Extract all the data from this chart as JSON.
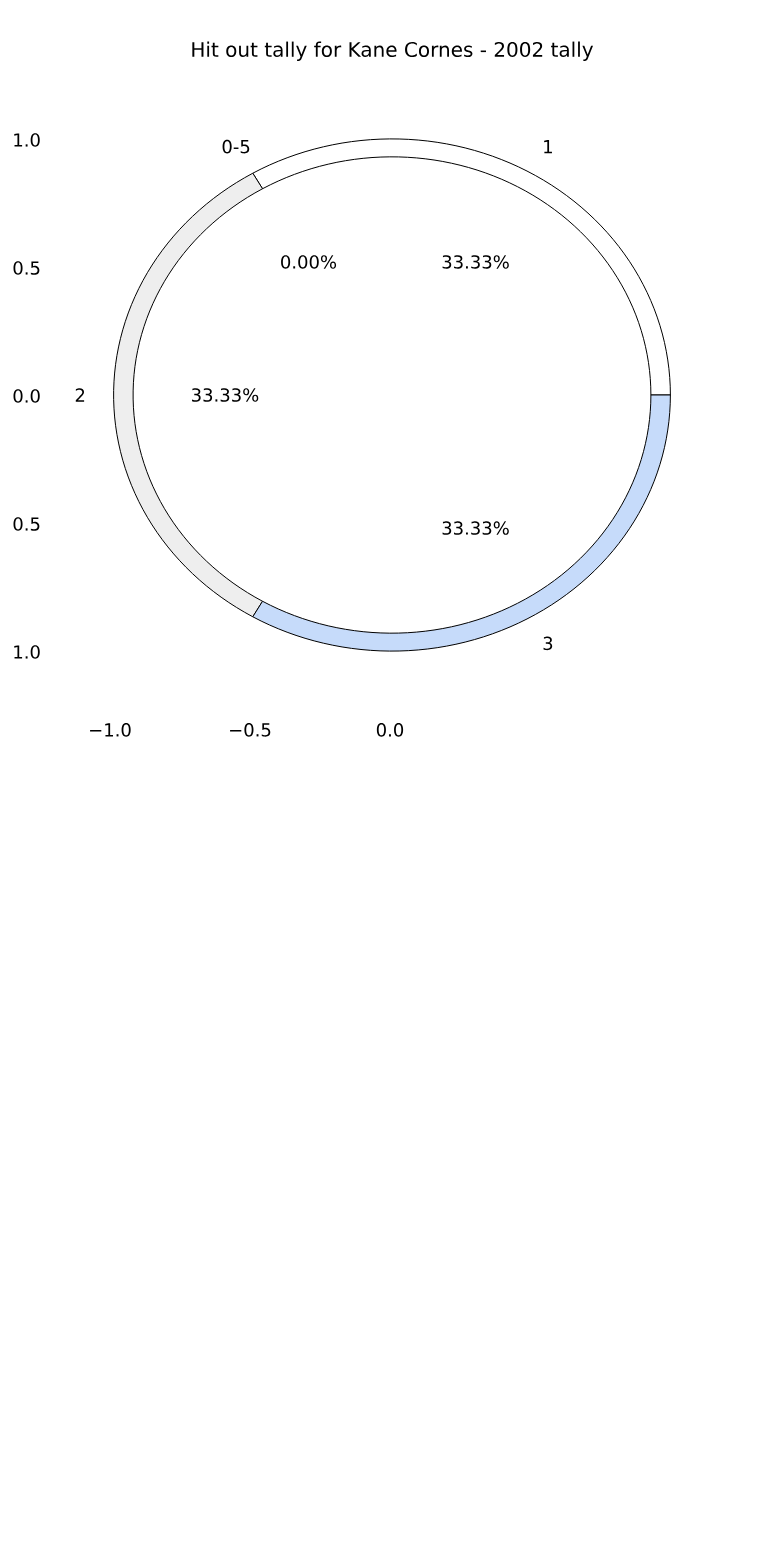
{
  "chart_data": {
    "type": "donut",
    "title": "Hit out tally for Kane Cornes - 2002 tally",
    "categories": [
      "1",
      "0-5",
      "2",
      "3"
    ],
    "values": [
      33.33,
      0,
      33.33,
      33.33
    ],
    "value_labels": [
      "33.33%",
      "0.00%",
      "33.33%",
      "33.33%"
    ],
    "colors": [
      "#ffffff",
      "#ffffff",
      "#eeeeee",
      "#c6dbfa"
    ],
    "annotations": [
      "−1.0",
      "−0.5",
      "0.0",
      "1.0",
      "0.5",
      "0.0",
      "0.5",
      "1.0"
    ]
  }
}
